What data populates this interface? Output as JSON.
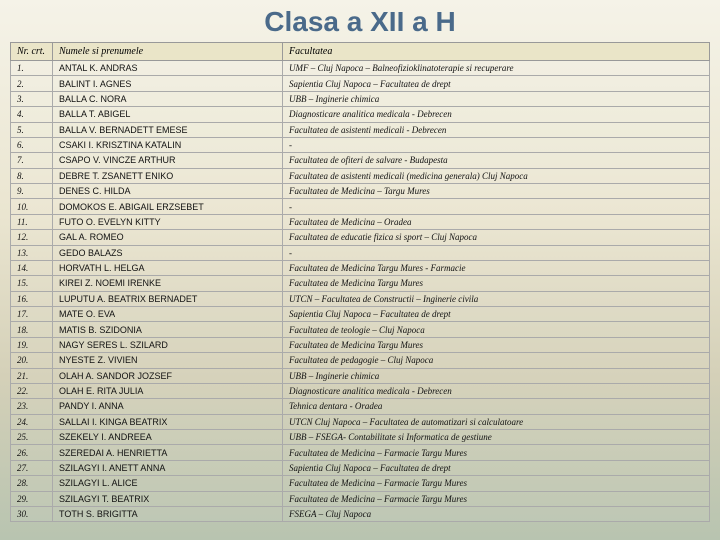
{
  "title": "Clasa a XII a H",
  "columns": {
    "nr": "Nr. crt.",
    "name": "Numele si prenumele",
    "fac": "Facultatea"
  },
  "rows": [
    {
      "nr": "1.",
      "name": "ANTAL K. ANDRAS",
      "fac": "UMF – Cluj Napoca – Balneofizioklinatoterapie si recuperare"
    },
    {
      "nr": "2.",
      "name": "BALINT I. AGNES",
      "fac": "Sapientia Cluj Napoca – Facultatea de drept"
    },
    {
      "nr": "3.",
      "name": "BALLA C. NORA",
      "fac": "UBB – Inginerie chimica"
    },
    {
      "nr": "4.",
      "name": "BALLA T. ABIGEL",
      "fac": "Diagnosticare analitica medicala - Debrecen"
    },
    {
      "nr": "5.",
      "name": "BALLA V. BERNADETT EMESE",
      "fac": "Facultatea de asistenti medicali - Debrecen"
    },
    {
      "nr": "6.",
      "name": "CSAKI I. KRISZTINA KATALIN",
      "fac": "-"
    },
    {
      "nr": "7.",
      "name": "CSAPO V. VINCZE ARTHUR",
      "fac": "Facultatea de ofiteri de salvare - Budapesta"
    },
    {
      "nr": "8.",
      "name": "DEBRE T. ZSANETT ENIKO",
      "fac": "Facultatea de asistenti medicali (medicina generala) Cluj Napoca"
    },
    {
      "nr": "9.",
      "name": "DENES C. HILDA",
      "fac": "Facultatea de Medicina – Targu Mures"
    },
    {
      "nr": "10.",
      "name": "DOMOKOS E. ABIGAIL ERZSEBET",
      "fac": "-"
    },
    {
      "nr": "11.",
      "name": "FUTO O. EVELYN KITTY",
      "fac": "Facultatea de Medicina – Oradea"
    },
    {
      "nr": "12.",
      "name": "GAL A. ROMEO",
      "fac": "Facultatea de educatie fizica si sport – Cluj Napoca"
    },
    {
      "nr": "13.",
      "name": "GEDO BALAZS",
      "fac": "-"
    },
    {
      "nr": "14.",
      "name": "HORVATH L. HELGA",
      "fac": "Facultatea de Medicina Targu Mures - Farmacie"
    },
    {
      "nr": "15.",
      "name": "KIREI Z. NOEMI IRENKE",
      "fac": "Facultatea de Medicina Targu Mures"
    },
    {
      "nr": "16.",
      "name": "LUPUTU A. BEATRIX BERNADET",
      "fac": "UTCN – Facultatea de Constructii – Inginerie civila"
    },
    {
      "nr": "17.",
      "name": "MATE O. EVA",
      "fac": "Sapientia Cluj Napoca – Facultatea de drept"
    },
    {
      "nr": "18.",
      "name": "MATIS B. SZIDONIA",
      "fac": "Facultatea de teologie – Cluj Napoca"
    },
    {
      "nr": "19.",
      "name": "NAGY SERES L. SZILARD",
      "fac": "Facultatea de Medicina Targu Mures"
    },
    {
      "nr": "20.",
      "name": "NYESTE Z. VIVIEN",
      "fac": "Facultatea de pedagogie – Cluj Napoca"
    },
    {
      "nr": "21.",
      "name": "OLAH A. SANDOR JOZSEF",
      "fac": "UBB – Inginerie chimica"
    },
    {
      "nr": "22.",
      "name": "OLAH E. RITA JULIA",
      "fac": "Diagnosticare analitica medicala - Debrecen"
    },
    {
      "nr": "23.",
      "name": "PANDY I. ANNA",
      "fac": "Tehnica dentara - Oradea"
    },
    {
      "nr": "24.",
      "name": "SALLAI I. KINGA BEATRIX",
      "fac": "UTCN Cluj Napoca – Facultatea de automatizari si calculatoare"
    },
    {
      "nr": "25.",
      "name": "SZEKELY I. ANDREEA",
      "fac": "UBB – FSEGA- Contabilitate si Informatica de gestiune"
    },
    {
      "nr": "26.",
      "name": "SZEREDAI A. HENRIETTA",
      "fac": "Facultatea de Medicina – Farmacie Targu Mures"
    },
    {
      "nr": "27.",
      "name": "SZILAGYI I. ANETT ANNA",
      "fac": "Sapientia Cluj Napoca – Facultatea de drept"
    },
    {
      "nr": "28.",
      "name": "SZILAGYI L. ALICE",
      "fac": "Facultatea de Medicina – Farmacie Targu Mures"
    },
    {
      "nr": "29.",
      "name": "SZILAGYI T. BEATRIX",
      "fac": "Facultatea de Medicina – Farmacie Targu Mures"
    },
    {
      "nr": "30.",
      "name": "TOTH S. BRIGITTA",
      "fac": "FSEGA – Cluj Napoca"
    }
  ]
}
